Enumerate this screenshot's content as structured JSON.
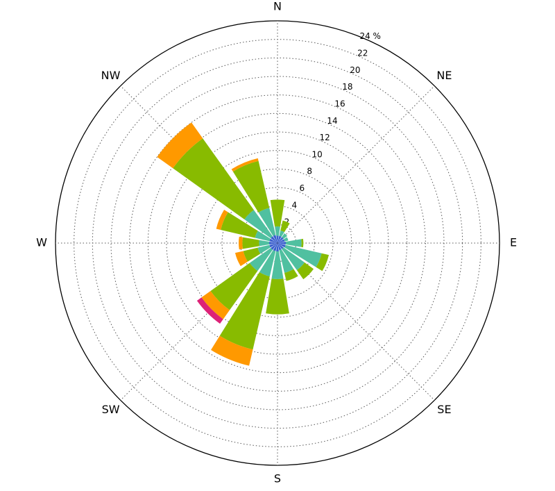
{
  "chart_data": {
    "type": "windrose",
    "categories": [
      "N",
      null,
      "NE",
      null,
      "E",
      null,
      "SE",
      null,
      "S",
      null,
      "SW",
      null,
      "W",
      null,
      "NW",
      null
    ],
    "series": [
      {
        "color": "#3a5fcd",
        "values": [
          0.8,
          0.8,
          0.8,
          0.8,
          0.9,
          0.9,
          0.8,
          0.8,
          0.9,
          0.9,
          0.9,
          0.9,
          0.9,
          0.9,
          0.9,
          0.9
        ]
      },
      {
        "color": "#50c0a0",
        "values": [
          1.0,
          0.6,
          0.5,
          0.4,
          1.7,
          4.0,
          2.8,
          2.5,
          3.0,
          2.8,
          2.8,
          1.3,
          1.1,
          1.6,
          3.5,
          3.0
        ]
      },
      {
        "color": "#88bb00",
        "values": [
          2.9,
          1.1,
          0,
          0,
          0.2,
          0.8,
          1.2,
          0.9,
          3.8,
          8.1,
          5.2,
          1.6,
          1.8,
          3.8,
          9.5,
          5.2
        ]
      },
      {
        "color": "#ff9900",
        "values": [
          0,
          0,
          0,
          0,
          0,
          0,
          0,
          0,
          0,
          1.8,
          1.2,
          0.9,
          0.4,
          0.5,
          2.1,
          0.3
        ]
      },
      {
        "color": "#dd2277",
        "values": [
          0,
          0,
          0,
          0,
          0,
          0,
          0,
          0,
          0,
          0,
          0.6,
          0,
          0,
          0,
          0,
          0
        ]
      }
    ],
    "ylim": [
      0,
      24
    ],
    "yticks": [
      2,
      4,
      6,
      8,
      10,
      12,
      14,
      16,
      18,
      20,
      22,
      {
        "value": 24,
        "label": "24 %"
      }
    ],
    "grid": true
  }
}
